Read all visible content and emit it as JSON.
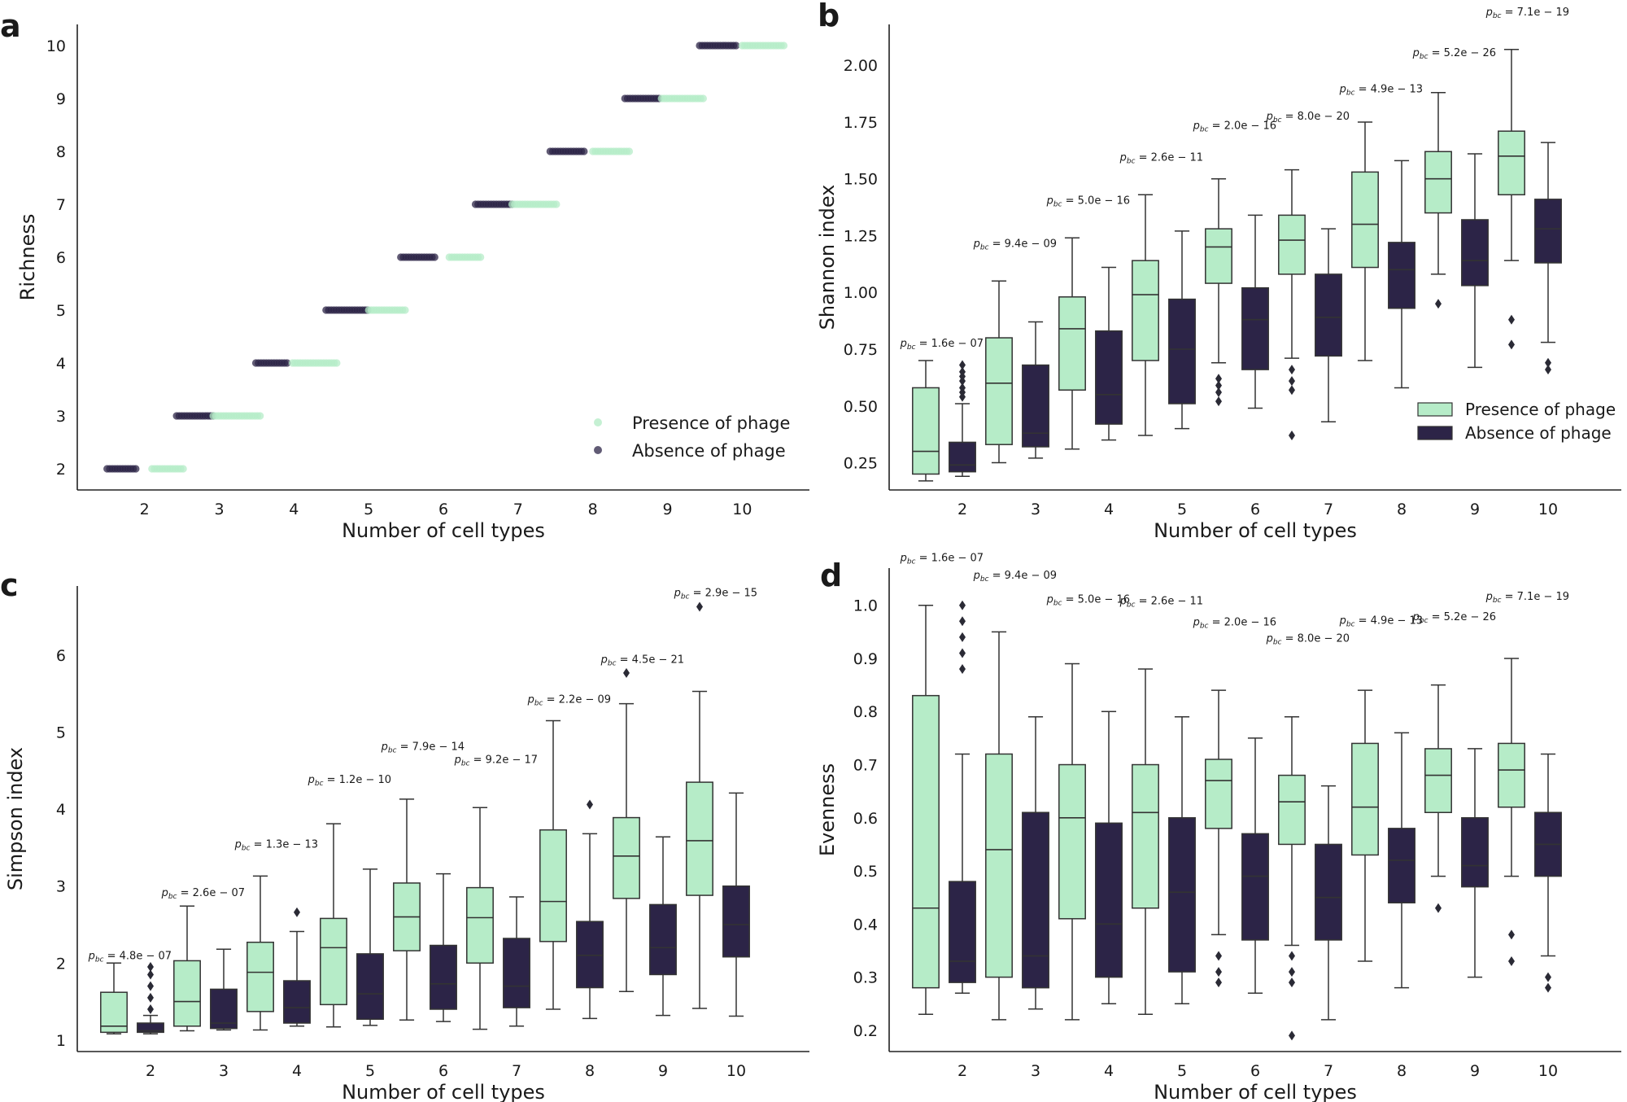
{
  "colors": {
    "presence": "#b6ecc8",
    "absence": "#2c2447",
    "axis": "#222222",
    "text": "#1a1a1a"
  },
  "legend_labels": {
    "presence": "Presence of phage",
    "absence": "Absence of phage"
  },
  "chart_data": [
    {
      "id": "a",
      "panel_label": "a",
      "type": "scatter",
      "xlabel": "Number of cell types",
      "ylabel": "Richness",
      "xticks": [
        "2",
        "3",
        "4",
        "5",
        "6",
        "7",
        "8",
        "9",
        "10"
      ],
      "yticks": [
        "2",
        "3",
        "4",
        "5",
        "6",
        "7",
        "8",
        "9",
        "10"
      ],
      "xlim": [
        1.1,
        10.9
      ],
      "ylim": [
        1.6,
        10.4
      ],
      "legend_position": "bottom-right",
      "series": [
        {
          "name": "Absence of phage",
          "segments": [
            {
              "y": 2,
              "x_from": 1.5,
              "x_to": 1.9
            },
            {
              "y": 3,
              "x_from": 2.43,
              "x_to": 2.93
            },
            {
              "y": 4,
              "x_from": 3.49,
              "x_to": 3.91
            },
            {
              "y": 5,
              "x_from": 4.43,
              "x_to": 5.0
            },
            {
              "y": 6,
              "x_from": 5.43,
              "x_to": 5.9
            },
            {
              "y": 7,
              "x_from": 6.43,
              "x_to": 6.95
            },
            {
              "y": 8,
              "x_from": 7.43,
              "x_to": 7.9
            },
            {
              "y": 9,
              "x_from": 8.43,
              "x_to": 8.9
            },
            {
              "y": 10,
              "x_from": 9.43,
              "x_to": 9.92
            }
          ]
        },
        {
          "name": "Presence of phage",
          "segments": [
            {
              "y": 2,
              "x_from": 2.1,
              "x_to": 2.52
            },
            {
              "y": 3,
              "x_from": 2.92,
              "x_to": 3.55
            },
            {
              "y": 4,
              "x_from": 3.98,
              "x_to": 4.6
            },
            {
              "y": 5,
              "x_from": 5.0,
              "x_to": 5.52
            },
            {
              "y": 6,
              "x_from": 6.08,
              "x_to": 6.5
            },
            {
              "y": 7,
              "x_from": 6.92,
              "x_to": 7.52
            },
            {
              "y": 8,
              "x_from": 8.0,
              "x_to": 8.52
            },
            {
              "y": 9,
              "x_from": 8.92,
              "x_to": 9.5
            },
            {
              "y": 10,
              "x_from": 10.0,
              "x_to": 10.58
            }
          ]
        }
      ]
    },
    {
      "id": "b",
      "panel_label": "b",
      "type": "box",
      "xlabel": "Number of cell types",
      "ylabel": "Shannon index",
      "xticks": [
        "2",
        "3",
        "4",
        "5",
        "6",
        "7",
        "8",
        "9",
        "10"
      ],
      "yticks": [
        "0.25",
        "0.50",
        "0.75",
        "1.00",
        "1.25",
        "1.50",
        "1.75",
        "2.00"
      ],
      "ylim": [
        0.13,
        2.18
      ],
      "legend_position": "bottom-right",
      "pvalues": [
        {
          "text": "p_bc = 1.6e − 07",
          "y": 0.76
        },
        {
          "text": "p_bc = 9.4e − 09",
          "y": 1.2
        },
        {
          "text": "p_bc = 5.0e − 16",
          "y": 1.39
        },
        {
          "text": "p_bc = 2.6e − 11",
          "y": 1.58
        },
        {
          "text": "p_bc = 2.0e − 16",
          "y": 1.72
        },
        {
          "text": "p_bc = 8.0e − 20",
          "y": 1.76
        },
        {
          "text": "p_bc = 4.9e − 13",
          "y": 1.88
        },
        {
          "text": "p_bc = 5.2e − 26",
          "y": 2.04
        },
        {
          "text": "p_bc = 7.1e − 19",
          "y": 2.22
        }
      ],
      "boxes": [
        {
          "series": "Presence of phage",
          "slot": 0,
          "whislo": 0.17,
          "q1": 0.2,
          "med": 0.3,
          "q3": 0.58,
          "whishi": 0.7,
          "fliers": []
        },
        {
          "series": "Absence of phage",
          "slot": 1,
          "whislo": 0.19,
          "q1": 0.21,
          "med": 0.24,
          "q3": 0.34,
          "whishi": 0.51,
          "fliers": [
            0.54,
            0.56,
            0.58,
            0.61,
            0.63,
            0.65,
            0.68
          ]
        },
        {
          "series": "Presence of phage",
          "slot": 1,
          "whislo": 0.25,
          "q1": 0.33,
          "med": 0.6,
          "q3": 0.8,
          "whishi": 1.05,
          "fliers": []
        },
        {
          "series": "Absence of phage",
          "slot": 2,
          "whislo": 0.27,
          "q1": 0.32,
          "med": 0.38,
          "q3": 0.68,
          "whishi": 0.87,
          "fliers": []
        },
        {
          "series": "Presence of phage",
          "slot": 2,
          "whislo": 0.31,
          "q1": 0.57,
          "med": 0.84,
          "q3": 0.98,
          "whishi": 1.24,
          "fliers": []
        },
        {
          "series": "Absence of phage",
          "slot": 3,
          "whislo": 0.35,
          "q1": 0.42,
          "med": 0.55,
          "q3": 0.83,
          "whishi": 1.11,
          "fliers": []
        },
        {
          "series": "Presence of phage",
          "slot": 3,
          "whislo": 0.37,
          "q1": 0.7,
          "med": 0.99,
          "q3": 1.14,
          "whishi": 1.43,
          "fliers": []
        },
        {
          "series": "Absence of phage",
          "slot": 4,
          "whislo": 0.4,
          "q1": 0.51,
          "med": 0.75,
          "q3": 0.97,
          "whishi": 1.27,
          "fliers": []
        },
        {
          "series": "Presence of phage",
          "slot": 4,
          "whislo": 0.69,
          "q1": 1.04,
          "med": 1.2,
          "q3": 1.28,
          "whishi": 1.5,
          "fliers": [
            0.52,
            0.56,
            0.59,
            0.62
          ]
        },
        {
          "series": "Absence of phage",
          "slot": 5,
          "whislo": 0.49,
          "q1": 0.66,
          "med": 0.88,
          "q3": 1.02,
          "whishi": 1.34,
          "fliers": []
        },
        {
          "series": "Presence of phage",
          "slot": 5,
          "whislo": 0.71,
          "q1": 1.08,
          "med": 1.23,
          "q3": 1.34,
          "whishi": 1.54,
          "fliers": [
            0.37,
            0.57,
            0.61,
            0.66
          ]
        },
        {
          "series": "Absence of phage",
          "slot": 6,
          "whislo": 0.43,
          "q1": 0.72,
          "med": 0.89,
          "q3": 1.08,
          "whishi": 1.28,
          "fliers": []
        },
        {
          "series": "Presence of phage",
          "slot": 6,
          "whislo": 0.7,
          "q1": 1.11,
          "med": 1.3,
          "q3": 1.53,
          "whishi": 1.75,
          "fliers": []
        },
        {
          "series": "Absence of phage",
          "slot": 7,
          "whislo": 0.58,
          "q1": 0.93,
          "med": 1.1,
          "q3": 1.22,
          "whishi": 1.58,
          "fliers": []
        },
        {
          "series": "Presence of phage",
          "slot": 7,
          "whislo": 1.08,
          "q1": 1.35,
          "med": 1.5,
          "q3": 1.62,
          "whishi": 1.88,
          "fliers": [
            0.95
          ]
        },
        {
          "series": "Absence of phage",
          "slot": 8,
          "whislo": 0.67,
          "q1": 1.03,
          "med": 1.14,
          "q3": 1.32,
          "whishi": 1.61,
          "fliers": []
        },
        {
          "series": "Presence of phage",
          "slot": 8,
          "whislo": 1.14,
          "q1": 1.43,
          "med": 1.6,
          "q3": 1.71,
          "whishi": 2.07,
          "fliers": [
            0.77,
            0.88
          ]
        },
        {
          "series": "Absence of phage",
          "slot": 9,
          "whislo": 0.78,
          "q1": 1.13,
          "med": 1.28,
          "q3": 1.41,
          "whishi": 1.66,
          "fliers": [
            0.66,
            0.69
          ]
        }
      ]
    },
    {
      "id": "c",
      "panel_label": "c",
      "type": "box",
      "xlabel": "Number of cell types",
      "ylabel": "Simpson index",
      "xticks": [
        "2",
        "3",
        "4",
        "5",
        "6",
        "7",
        "8",
        "9",
        "10"
      ],
      "yticks": [
        "1",
        "2",
        "3",
        "4",
        "5",
        "6"
      ],
      "ylim": [
        0.85,
        6.9
      ],
      "legend_position": "none",
      "pvalues": [
        {
          "text": "p_bc = 4.8e − 07",
          "y": 2.05
        },
        {
          "text": "p_bc = 2.6e − 07",
          "y": 2.87
        },
        {
          "text": "p_bc = 1.3e − 13",
          "y": 3.5
        },
        {
          "text": "p_bc = 1.2e − 10",
          "y": 4.34
        },
        {
          "text": "p_bc = 7.9e − 14",
          "y": 4.77
        },
        {
          "text": "p_bc = 9.2e − 17",
          "y": 4.6
        },
        {
          "text": "p_bc = 2.2e − 09",
          "y": 5.38
        },
        {
          "text": "p_bc = 4.5e − 21",
          "y": 5.9
        },
        {
          "text": "p_bc = 2.9e − 15",
          "y": 6.77
        }
      ],
      "boxes": [
        {
          "series": "Presence of phage",
          "slot": 0,
          "whislo": 1.08,
          "q1": 1.1,
          "med": 1.18,
          "q3": 1.62,
          "whishi": 2.0,
          "fliers": []
        },
        {
          "series": "Absence of phage",
          "slot": 1,
          "whislo": 1.08,
          "q1": 1.1,
          "med": 1.12,
          "q3": 1.22,
          "whishi": 1.32,
          "fliers": [
            1.4,
            1.55,
            1.7,
            1.85,
            1.95
          ]
        },
        {
          "series": "Presence of phage",
          "slot": 1,
          "whislo": 1.12,
          "q1": 1.18,
          "med": 1.5,
          "q3": 2.03,
          "whishi": 2.74,
          "fliers": []
        },
        {
          "series": "Absence of phage",
          "slot": 2,
          "whislo": 1.13,
          "q1": 1.15,
          "med": 1.22,
          "q3": 1.66,
          "whishi": 2.18,
          "fliers": []
        },
        {
          "series": "Presence of phage",
          "slot": 2,
          "whislo": 1.13,
          "q1": 1.37,
          "med": 1.88,
          "q3": 2.27,
          "whishi": 3.13,
          "fliers": []
        },
        {
          "series": "Absence of phage",
          "slot": 3,
          "whislo": 1.18,
          "q1": 1.22,
          "med": 1.42,
          "q3": 1.77,
          "whishi": 2.41,
          "fliers": [
            2.66
          ]
        },
        {
          "series": "Presence of phage",
          "slot": 3,
          "whislo": 1.17,
          "q1": 1.46,
          "med": 2.2,
          "q3": 2.58,
          "whishi": 3.81,
          "fliers": []
        },
        {
          "series": "Absence of phage",
          "slot": 4,
          "whislo": 1.19,
          "q1": 1.27,
          "med": 1.6,
          "q3": 2.12,
          "whishi": 3.22,
          "fliers": []
        },
        {
          "series": "Presence of phage",
          "slot": 4,
          "whislo": 1.26,
          "q1": 2.16,
          "med": 2.6,
          "q3": 3.04,
          "whishi": 4.13,
          "fliers": []
        },
        {
          "series": "Absence of phage",
          "slot": 5,
          "whislo": 1.24,
          "q1": 1.4,
          "med": 1.73,
          "q3": 2.23,
          "whishi": 3.16,
          "fliers": []
        },
        {
          "series": "Presence of phage",
          "slot": 5,
          "whislo": 1.14,
          "q1": 2.0,
          "med": 2.59,
          "q3": 2.98,
          "whishi": 4.02,
          "fliers": []
        },
        {
          "series": "Absence of phage",
          "slot": 6,
          "whislo": 1.18,
          "q1": 1.42,
          "med": 1.7,
          "q3": 2.32,
          "whishi": 2.86,
          "fliers": []
        },
        {
          "series": "Presence of phage",
          "slot": 6,
          "whislo": 1.4,
          "q1": 2.28,
          "med": 2.8,
          "q3": 3.73,
          "whishi": 5.15,
          "fliers": []
        },
        {
          "series": "Absence of phage",
          "slot": 7,
          "whislo": 1.28,
          "q1": 1.68,
          "med": 2.1,
          "q3": 2.54,
          "whishi": 3.68,
          "fliers": [
            4.06
          ]
        },
        {
          "series": "Presence of phage",
          "slot": 7,
          "whislo": 1.63,
          "q1": 2.84,
          "med": 3.39,
          "q3": 3.89,
          "whishi": 5.37,
          "fliers": [
            5.77
          ]
        },
        {
          "series": "Absence of phage",
          "slot": 8,
          "whislo": 1.32,
          "q1": 1.85,
          "med": 2.2,
          "q3": 2.76,
          "whishi": 3.64,
          "fliers": []
        },
        {
          "series": "Presence of phage",
          "slot": 8,
          "whislo": 1.41,
          "q1": 2.88,
          "med": 3.59,
          "q3": 4.35,
          "whishi": 5.53,
          "fliers": [
            6.63
          ]
        },
        {
          "series": "Absence of phage",
          "slot": 9,
          "whislo": 1.31,
          "q1": 2.08,
          "med": 2.5,
          "q3": 3.0,
          "whishi": 4.21,
          "fliers": []
        }
      ]
    },
    {
      "id": "d",
      "panel_label": "d",
      "type": "box",
      "xlabel": "Number of cell types",
      "ylabel": "Evenness",
      "xticks": [
        "2",
        "3",
        "4",
        "5",
        "6",
        "7",
        "8",
        "9",
        "10"
      ],
      "yticks": [
        "0.2",
        "0.3",
        "0.4",
        "0.5",
        "0.6",
        "0.7",
        "0.8",
        "0.9",
        "1.0"
      ],
      "ylim": [
        0.16,
        1.07
      ],
      "legend_position": "none",
      "pvalues": [
        {
          "text": "p_bc = 1.6e − 07",
          "y": 1.083
        },
        {
          "text": "p_bc = 9.4e − 09",
          "y": 1.05
        },
        {
          "text": "p_bc = 5.0e − 16",
          "y": 1.005
        },
        {
          "text": "p_bc = 2.6e − 11",
          "y": 1.002
        },
        {
          "text": "p_bc = 2.0e − 16",
          "y": 0.962
        },
        {
          "text": "p_bc = 8.0e − 20",
          "y": 0.931
        },
        {
          "text": "p_bc = 4.9e − 13",
          "y": 0.965
        },
        {
          "text": "p_bc = 5.2e − 26",
          "y": 0.972
        },
        {
          "text": "p_bc = 7.1e − 19",
          "y": 1.01
        }
      ],
      "boxes": [
        {
          "series": "Presence of phage",
          "slot": 0,
          "whislo": 0.23,
          "q1": 0.28,
          "med": 0.43,
          "q3": 0.83,
          "whishi": 1.0,
          "fliers": []
        },
        {
          "series": "Absence of phage",
          "slot": 1,
          "whislo": 0.27,
          "q1": 0.29,
          "med": 0.33,
          "q3": 0.48,
          "whishi": 0.72,
          "fliers": [
            0.88,
            0.91,
            0.94,
            0.97,
            1.0
          ]
        },
        {
          "series": "Presence of phage",
          "slot": 1,
          "whislo": 0.22,
          "q1": 0.3,
          "med": 0.54,
          "q3": 0.72,
          "whishi": 0.95,
          "fliers": []
        },
        {
          "series": "Absence of phage",
          "slot": 2,
          "whislo": 0.24,
          "q1": 0.28,
          "med": 0.34,
          "q3": 0.61,
          "whishi": 0.79,
          "fliers": []
        },
        {
          "series": "Presence of phage",
          "slot": 2,
          "whislo": 0.22,
          "q1": 0.41,
          "med": 0.6,
          "q3": 0.7,
          "whishi": 0.89,
          "fliers": []
        },
        {
          "series": "Absence of phage",
          "slot": 3,
          "whislo": 0.25,
          "q1": 0.3,
          "med": 0.4,
          "q3": 0.59,
          "whishi": 0.8,
          "fliers": []
        },
        {
          "series": "Presence of phage",
          "slot": 3,
          "whislo": 0.23,
          "q1": 0.43,
          "med": 0.61,
          "q3": 0.7,
          "whishi": 0.88,
          "fliers": []
        },
        {
          "series": "Absence of phage",
          "slot": 4,
          "whislo": 0.25,
          "q1": 0.31,
          "med": 0.46,
          "q3": 0.6,
          "whishi": 0.79,
          "fliers": []
        },
        {
          "series": "Presence of phage",
          "slot": 4,
          "whislo": 0.38,
          "q1": 0.58,
          "med": 0.67,
          "q3": 0.71,
          "whishi": 0.84,
          "fliers": [
            0.29,
            0.31,
            0.34
          ]
        },
        {
          "series": "Absence of phage",
          "slot": 5,
          "whislo": 0.27,
          "q1": 0.37,
          "med": 0.49,
          "q3": 0.57,
          "whishi": 0.75,
          "fliers": []
        },
        {
          "series": "Presence of phage",
          "slot": 5,
          "whislo": 0.36,
          "q1": 0.55,
          "med": 0.63,
          "q3": 0.68,
          "whishi": 0.79,
          "fliers": [
            0.19,
            0.29,
            0.31,
            0.34
          ]
        },
        {
          "series": "Absence of phage",
          "slot": 6,
          "whislo": 0.22,
          "q1": 0.37,
          "med": 0.45,
          "q3": 0.55,
          "whishi": 0.66,
          "fliers": []
        },
        {
          "series": "Presence of phage",
          "slot": 6,
          "whislo": 0.33,
          "q1": 0.53,
          "med": 0.62,
          "q3": 0.74,
          "whishi": 0.84,
          "fliers": []
        },
        {
          "series": "Absence of phage",
          "slot": 7,
          "whislo": 0.28,
          "q1": 0.44,
          "med": 0.52,
          "q3": 0.58,
          "whishi": 0.76,
          "fliers": []
        },
        {
          "series": "Presence of phage",
          "slot": 7,
          "whislo": 0.49,
          "q1": 0.61,
          "med": 0.68,
          "q3": 0.73,
          "whishi": 0.85,
          "fliers": [
            0.43
          ]
        },
        {
          "series": "Absence of phage",
          "slot": 8,
          "whislo": 0.3,
          "q1": 0.47,
          "med": 0.51,
          "q3": 0.6,
          "whishi": 0.73,
          "fliers": []
        },
        {
          "series": "Presence of phage",
          "slot": 8,
          "whislo": 0.49,
          "q1": 0.62,
          "med": 0.69,
          "q3": 0.74,
          "whishi": 0.9,
          "fliers": [
            0.33,
            0.38
          ]
        },
        {
          "series": "Absence of phage",
          "slot": 9,
          "whislo": 0.34,
          "q1": 0.49,
          "med": 0.55,
          "q3": 0.61,
          "whishi": 0.72,
          "fliers": [
            0.28,
            0.3
          ]
        }
      ]
    }
  ]
}
